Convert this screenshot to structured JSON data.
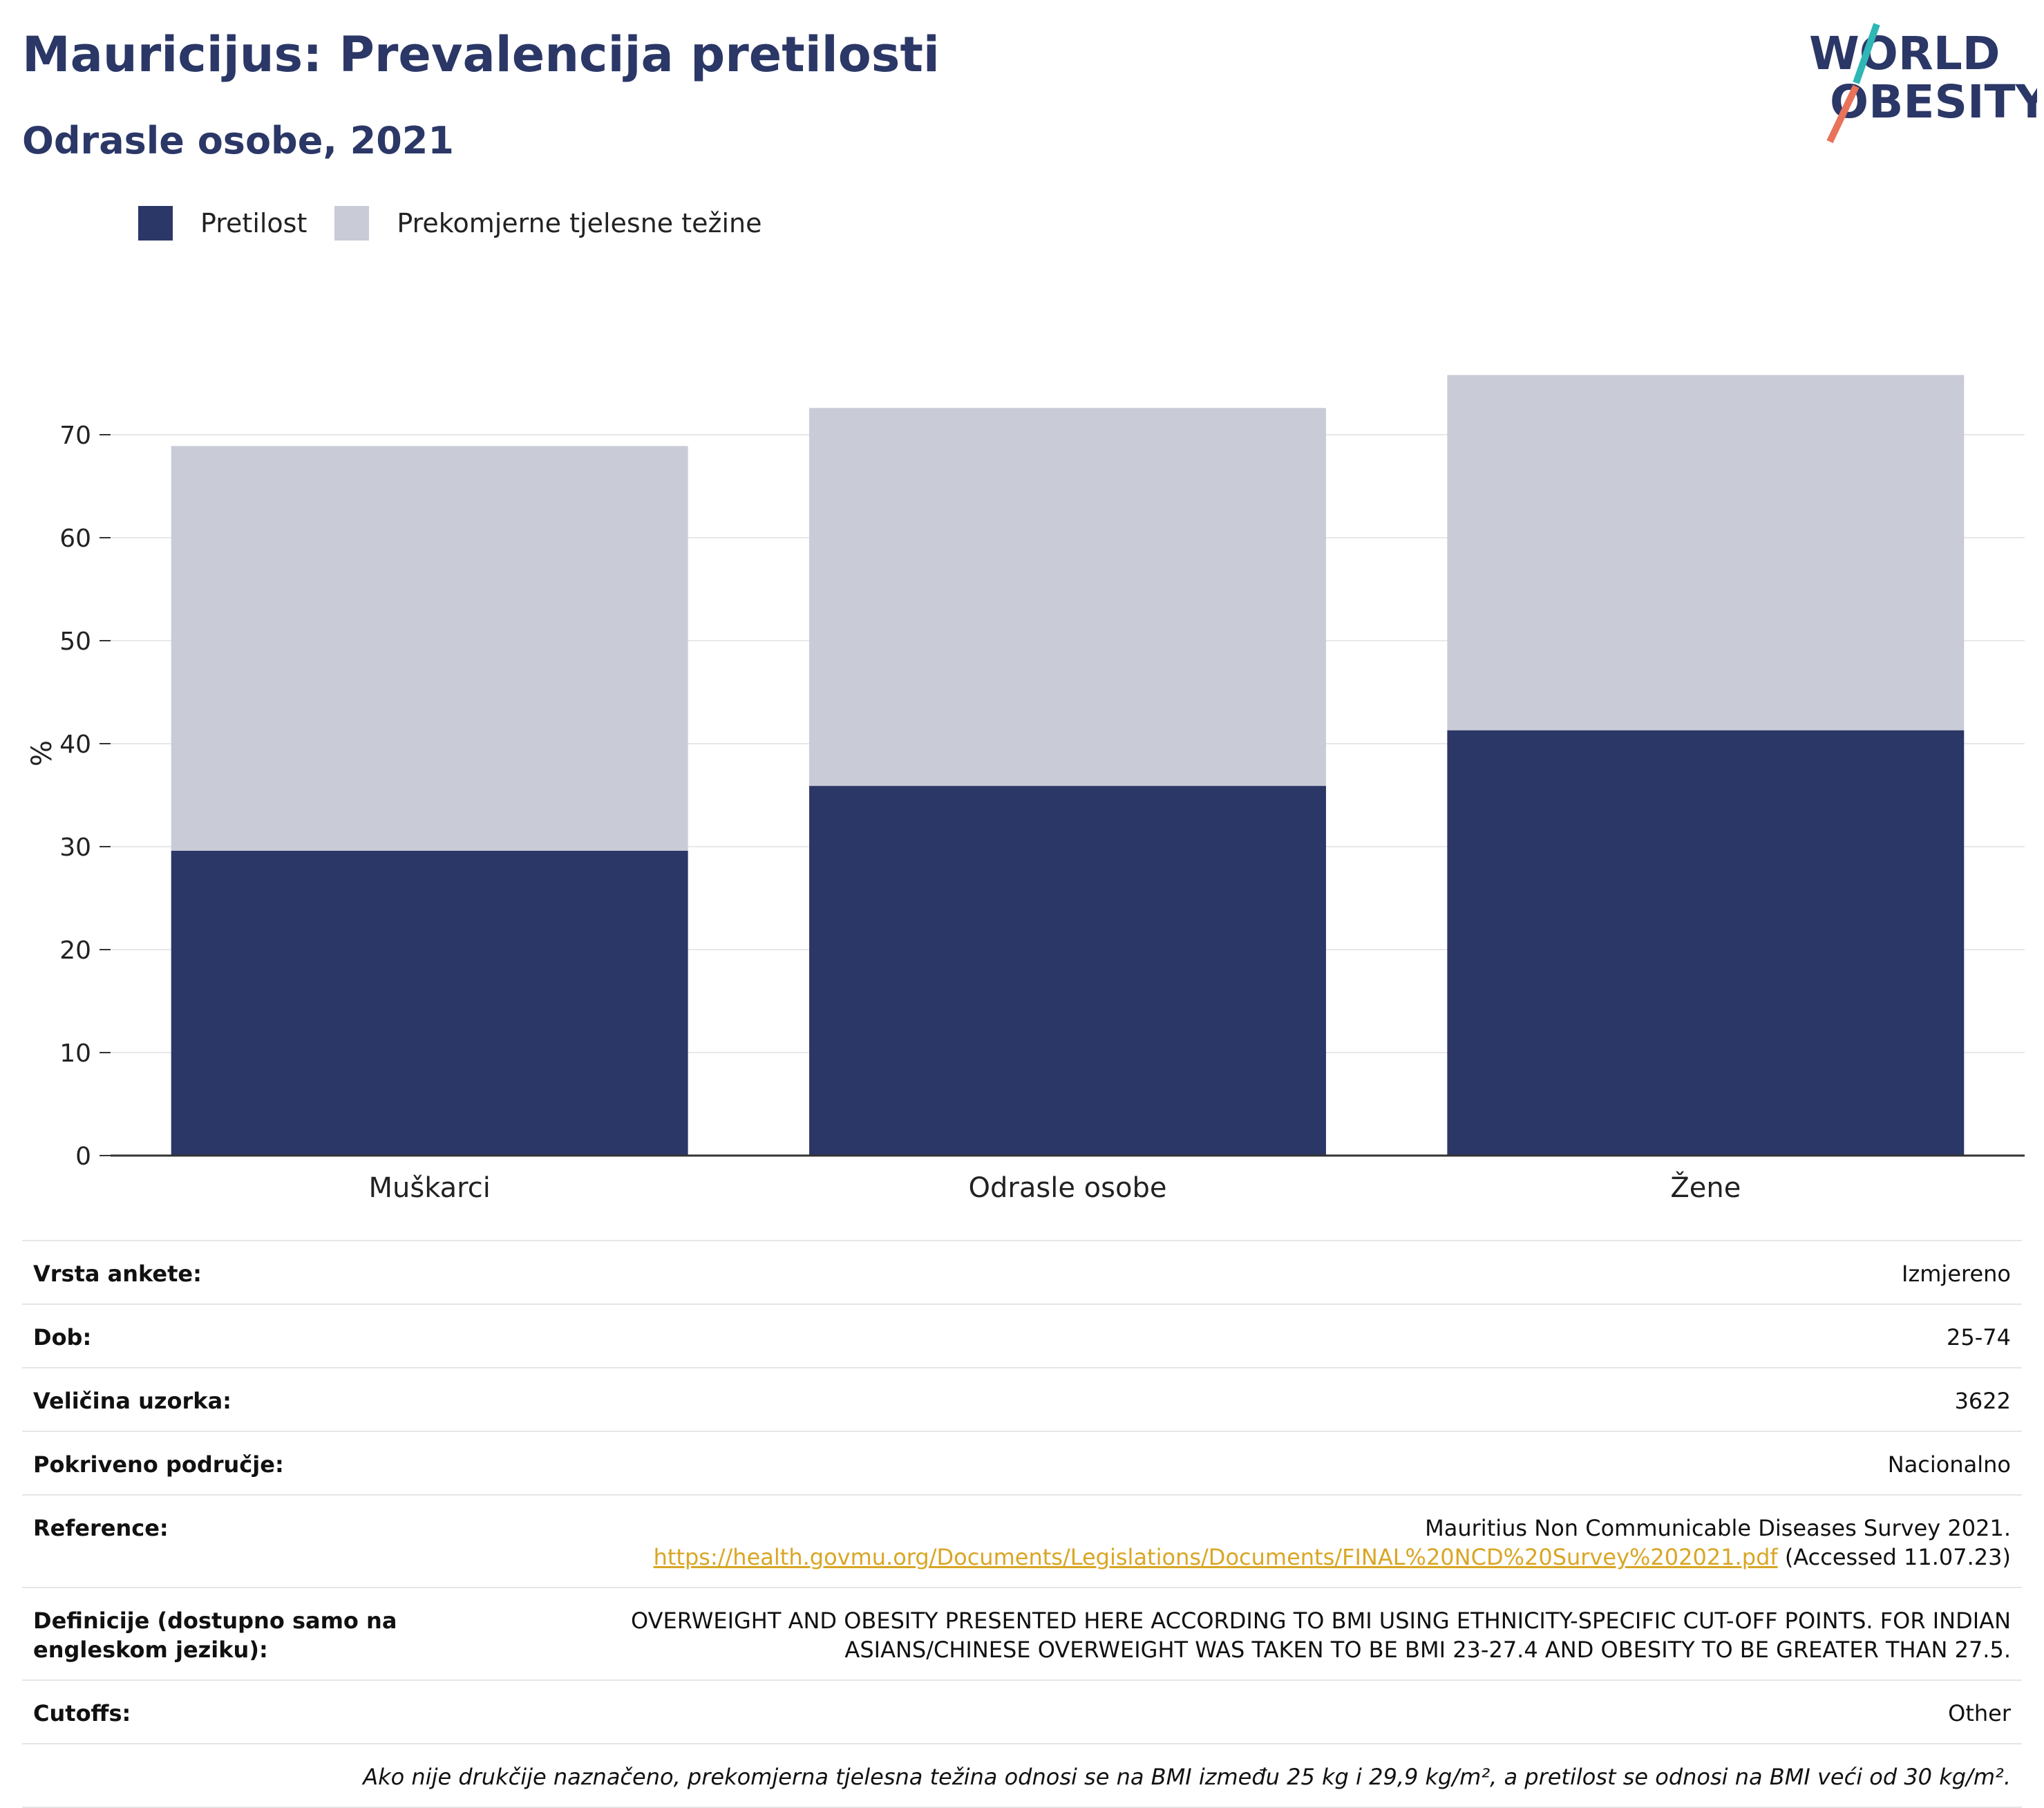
{
  "header": {
    "title": "Mauricijus: Prevalencija pretilosti",
    "subtitle": "Odrasle osobe, 2021"
  },
  "logo": {
    "line1": "WORLD",
    "line2": "OBESITY"
  },
  "colors": {
    "obesity": "#2b3766",
    "overweight": "#c9cbd7",
    "accent": "#2b3766",
    "link": "#d9a625",
    "logo_teal": "#2fb6b6",
    "logo_coral": "#e8735a"
  },
  "legend": [
    {
      "label": "Pretilost",
      "color": "#2b3766"
    },
    {
      "label": "Prekomjerne tjelesne težine",
      "color": "#c9cbd7"
    }
  ],
  "chart_data": {
    "type": "bar",
    "stacked": true,
    "categories": [
      "Muškarci",
      "Odrasle osobe",
      "Žene"
    ],
    "series": [
      {
        "name": "Pretilost",
        "values": [
          29.6,
          35.9,
          41.3
        ]
      },
      {
        "name": "Prekomjerne tjelesne težine",
        "values": [
          39.3,
          36.7,
          34.5
        ]
      }
    ],
    "ylabel": "%",
    "ylim": [
      0,
      80
    ],
    "yticks": [
      0,
      10,
      20,
      30,
      40,
      50,
      60,
      70
    ],
    "grid": true,
    "legend_position": "top-left"
  },
  "info": {
    "survey_type": {
      "label": "Vrsta ankete:",
      "value": "Izmjereno"
    },
    "age": {
      "label": "Dob:",
      "value": "25-74"
    },
    "sample": {
      "label": "Veličina uzorka:",
      "value": "3622"
    },
    "coverage": {
      "label": "Pokriveno područje:",
      "value": "Nacionalno"
    },
    "reference": {
      "label": "Reference:",
      "title": "Mauritius Non Communicable Diseases Survey 2021.",
      "url": "https://health.govmu.org/Documents/Legislations/Documents/FINAL%20NCD%20Survey%202021.pdf",
      "accessed": " (Accessed 11.07.23)"
    },
    "definitions": {
      "label": "Definicije (dostupno samo na engleskom jeziku):",
      "value": "OVERWEIGHT AND OBESITY PRESENTED HERE ACCORDING TO BMI USING ETHNICITY-SPECIFIC CUT-OFF POINTS. FOR INDIAN ASIANS/CHINESE OVERWEIGHT WAS TAKEN TO BE BMI 23-27.4 AND OBESITY TO BE GREATER THAN 27.5."
    },
    "cutoffs": {
      "label": "Cutoffs:",
      "value": "Other"
    },
    "note": "Ako nije drukčije naznačeno, prekomjerna tjelesna težina odnosi se na BMI između 25 kg i 29,9 kg/m², a pretilost se odnosi na BMI veći od 30 kg/m²."
  }
}
